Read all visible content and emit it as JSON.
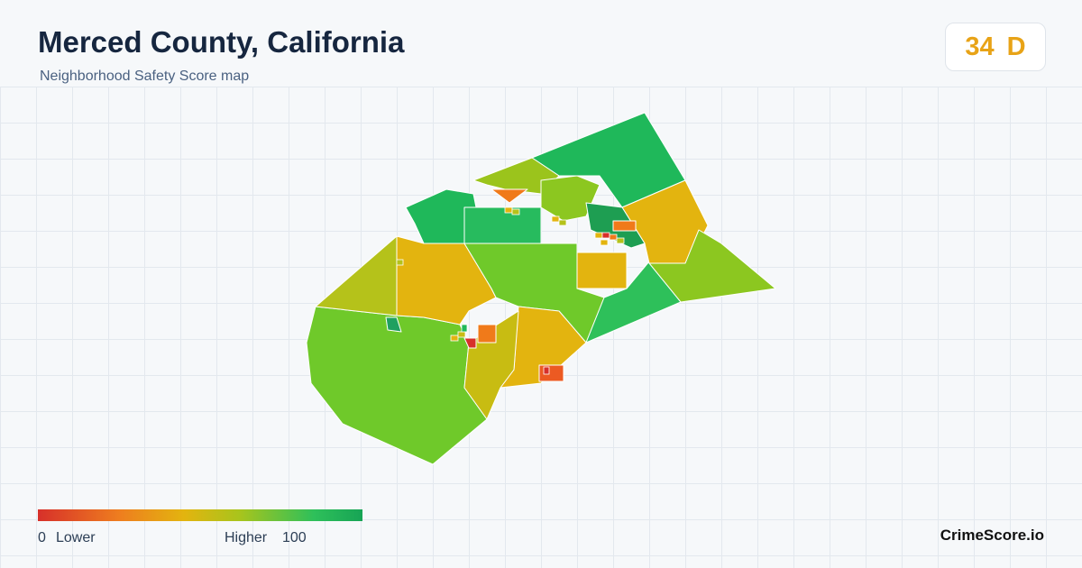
{
  "header": {
    "title": "Merced County, California",
    "subtitle": "Neighborhood Safety Score map"
  },
  "score": {
    "value": 34,
    "grade": "D"
  },
  "legend": {
    "min": 0,
    "min_label": "Lower",
    "max_label": "Higher",
    "max": 100
  },
  "brand": "CrimeScore.io"
}
